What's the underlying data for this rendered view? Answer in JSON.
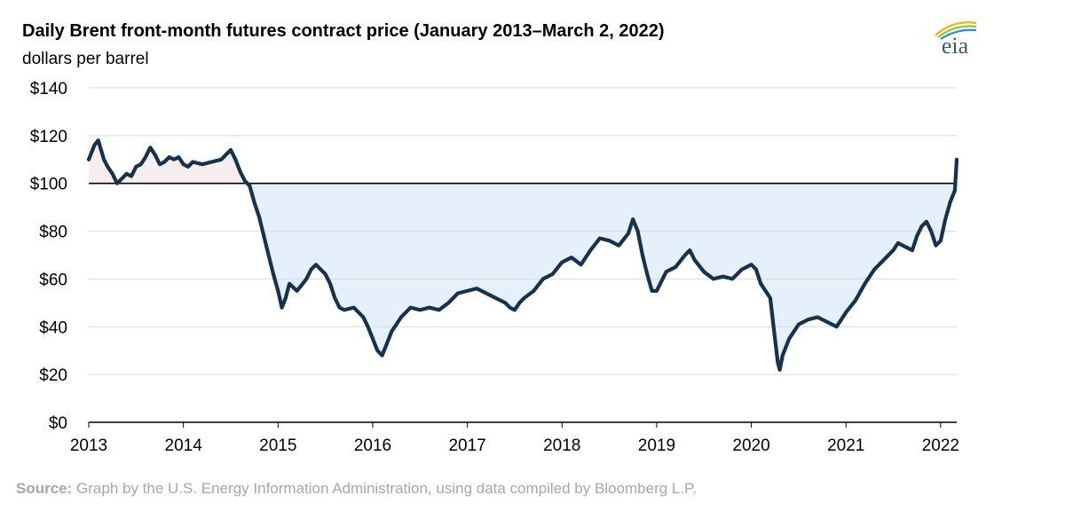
{
  "chart_data": {
    "type": "line",
    "title": "Daily Brent front-month futures contract price (January 2013–March 2, 2022)",
    "subtitle": "dollars per barrel",
    "xlim": [
      2013.0,
      2022.17
    ],
    "ylim": [
      0,
      140
    ],
    "yticks": [
      0,
      20,
      40,
      60,
      80,
      100,
      120,
      140
    ],
    "ytick_labels": [
      "$0",
      "$20",
      "$40",
      "$60",
      "$80",
      "$100",
      "$120",
      "$140"
    ],
    "xticks": [
      2013,
      2014,
      2015,
      2016,
      2017,
      2018,
      2019,
      2020,
      2021,
      2022
    ],
    "xtick_labels": [
      "2013",
      "2014",
      "2015",
      "2016",
      "2017",
      "2018",
      "2019",
      "2020",
      "2021",
      "2022"
    ],
    "grid": "horizontal",
    "reference_line": 100,
    "colors": {
      "line": "#15324e",
      "fill_above": "#f6eeee",
      "fill_below": "#e5f0fa",
      "reference": "#000000",
      "grid": "#d9d9d9"
    },
    "series": [
      {
        "x": [
          2013.0,
          2013.03,
          2013.06,
          2013.1,
          2013.13,
          2013.16,
          2013.2,
          2013.25,
          2013.3,
          2013.35,
          2013.4,
          2013.45,
          2013.5,
          2013.55,
          2013.6,
          2013.65,
          2013.7,
          2013.75,
          2013.8,
          2013.85,
          2013.9,
          2013.95,
          2014.0,
          2014.05,
          2014.1,
          2014.2,
          2014.3,
          2014.4,
          2014.45,
          2014.5,
          2014.55,
          2014.6,
          2014.65,
          2014.7,
          2014.75,
          2014.8,
          2014.85,
          2014.9,
          2014.95,
          2015.0,
          2015.04,
          2015.08,
          2015.12,
          2015.2,
          2015.3,
          2015.35,
          2015.4,
          2015.5,
          2015.55,
          2015.6,
          2015.65,
          2015.7,
          2015.8,
          2015.9,
          2015.95,
          2016.0,
          2016.05,
          2016.1,
          2016.15,
          2016.2,
          2016.3,
          2016.4,
          2016.5,
          2016.6,
          2016.7,
          2016.8,
          2016.9,
          2017.0,
          2017.1,
          2017.2,
          2017.3,
          2017.4,
          2017.45,
          2017.5,
          2017.55,
          2017.6,
          2017.7,
          2017.8,
          2017.9,
          2018.0,
          2018.1,
          2018.2,
          2018.3,
          2018.4,
          2018.5,
          2018.6,
          2018.7,
          2018.75,
          2018.8,
          2018.85,
          2018.9,
          2018.95,
          2019.0,
          2019.1,
          2019.2,
          2019.3,
          2019.35,
          2019.4,
          2019.5,
          2019.6,
          2019.7,
          2019.8,
          2019.9,
          2020.0,
          2020.05,
          2020.1,
          2020.15,
          2020.2,
          2020.25,
          2020.28,
          2020.3,
          2020.33,
          2020.4,
          2020.5,
          2020.6,
          2020.7,
          2020.8,
          2020.9,
          2021.0,
          2021.1,
          2021.2,
          2021.3,
          2021.4,
          2021.5,
          2021.55,
          2021.6,
          2021.7,
          2021.75,
          2021.8,
          2021.85,
          2021.9,
          2021.95,
          2022.0,
          2022.05,
          2022.1,
          2022.13,
          2022.15,
          2022.17
        ],
        "y": [
          110,
          113,
          116,
          118,
          114,
          110,
          107,
          104,
          100,
          102,
          104,
          103,
          107,
          108,
          111,
          115,
          112,
          108,
          109,
          111,
          110,
          111,
          108,
          107,
          109,
          108,
          109,
          110,
          112,
          114,
          110,
          105,
          101,
          99,
          92,
          86,
          78,
          70,
          62,
          55,
          48,
          52,
          58,
          55,
          60,
          64,
          66,
          62,
          58,
          52,
          48,
          47,
          48,
          44,
          40,
          35,
          30,
          28,
          33,
          38,
          44,
          48,
          47,
          48,
          47,
          50,
          54,
          55,
          56,
          54,
          52,
          50,
          48,
          47,
          50,
          52,
          55,
          60,
          62,
          67,
          69,
          66,
          72,
          77,
          76,
          74,
          79,
          85,
          80,
          70,
          62,
          55,
          55,
          63,
          65,
          70,
          72,
          68,
          63,
          60,
          61,
          60,
          64,
          66,
          64,
          58,
          55,
          52,
          35,
          25,
          22,
          28,
          35,
          41,
          43,
          44,
          42,
          40,
          46,
          51,
          58,
          64,
          68,
          72,
          75,
          74,
          72,
          78,
          82,
          84,
          80,
          74,
          76,
          85,
          92,
          95,
          97,
          110
        ]
      }
    ]
  },
  "source": {
    "label": "Source:",
    "text": " Graph by the U.S. Energy Information Administration, using data compiled by Bloomberg L.P."
  },
  "logo": {
    "text": "eia",
    "icon": "eia-logo-icon"
  }
}
